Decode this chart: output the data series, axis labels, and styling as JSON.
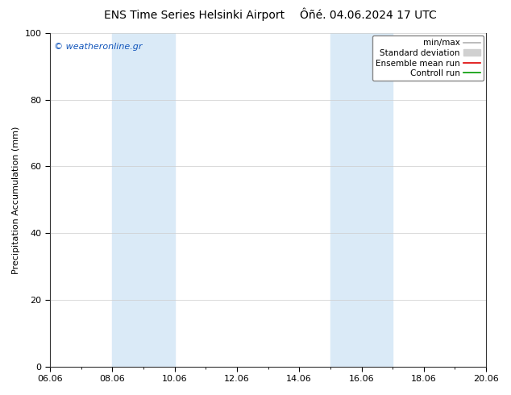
{
  "title1": "ENS Time Series Helsinki Airport",
  "title2": "Ôñé. 04.06.2024 17 UTC",
  "ylabel": "Precipitation Accumulation (mm)",
  "ylim": [
    0,
    100
  ],
  "yticks": [
    0,
    20,
    40,
    60,
    80,
    100
  ],
  "x_labels": [
    "06.06",
    "08.06",
    "10.06",
    "12.06",
    "14.06",
    "16.06",
    "18.06",
    "20.06"
  ],
  "x_tick_pos": [
    0,
    2,
    4,
    6,
    8,
    10,
    12,
    14
  ],
  "x_min": 0,
  "x_max": 14,
  "watermark": "© weatheronline.gr",
  "shade_bands": [
    {
      "x_start": 2,
      "x_end": 4,
      "color": "#daeaf7"
    },
    {
      "x_start": 9,
      "x_end": 11,
      "color": "#daeaf7"
    }
  ],
  "legend_items": [
    {
      "label": "min/max",
      "color": "#b0b0b0",
      "lw": 1.2,
      "type": "line"
    },
    {
      "label": "Standard deviation",
      "color": "#d0d0d0",
      "lw": 5,
      "type": "patch"
    },
    {
      "label": "Ensemble mean run",
      "color": "#dd0000",
      "lw": 1.2,
      "type": "line"
    },
    {
      "label": "Controll run",
      "color": "#009900",
      "lw": 1.2,
      "type": "line"
    }
  ],
  "background_color": "#ffffff",
  "plot_bg_color": "#ffffff",
  "border_color": "#333333",
  "title_fontsize": 10,
  "label_fontsize": 8,
  "tick_fontsize": 8,
  "legend_fontsize": 7.5,
  "watermark_color": "#1155bb",
  "watermark_fontsize": 8
}
